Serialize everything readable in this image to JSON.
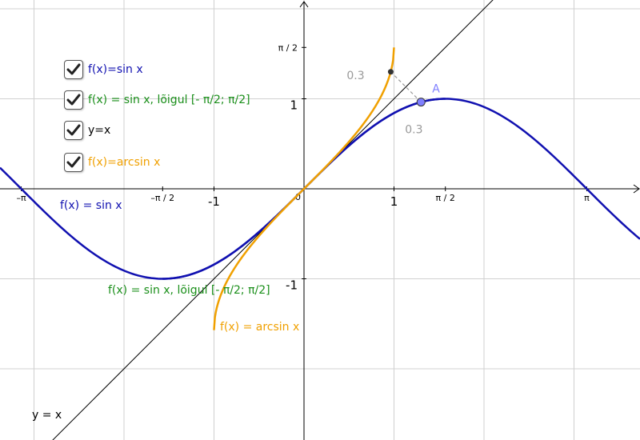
{
  "colors": {
    "sin": "#1010b0",
    "sin_restricted": "#1a8f1a",
    "identity": "#000000",
    "arcsin": "#f0a000",
    "point": "#8080ff",
    "gray_text": "#999999",
    "grid": "#d0d0d0"
  },
  "checkboxes": [
    {
      "label": "f(x)=sin x",
      "checked": true,
      "color": "#1010b0"
    },
    {
      "label": "f(x) = sin x, lõigul [- π/2; π/2]",
      "checked": true,
      "color": "#1a8f1a"
    },
    {
      "label": "y=x",
      "checked": true,
      "color": "#000000"
    },
    {
      "label": "f(x)=arcsin x",
      "checked": true,
      "color": "#f0a000"
    }
  ],
  "axis": {
    "x_ticks": [
      {
        "value": -3.14159,
        "label": "–π"
      },
      {
        "value": -1.5708,
        "label": "–π / 2"
      },
      {
        "value": -1,
        "label": "-1"
      },
      {
        "value": 1,
        "label": "1"
      },
      {
        "value": 1.5708,
        "label": "π / 2"
      },
      {
        "value": 3.14159,
        "label": "π"
      }
    ],
    "y_ticks": [
      {
        "value": 1.5708,
        "label": "π / 2"
      },
      {
        "value": 1,
        "label": "1"
      },
      {
        "value": -1,
        "label": "-1"
      }
    ],
    "origin_label": "0"
  },
  "curve_labels": {
    "sin": "f(x) = sin x",
    "sin_restricted": "f(x) = sin x, lõigul [- π/2; π/2]",
    "arcsin": "f(x) = arcsin x",
    "identity": "y = x"
  },
  "point": {
    "name": "A",
    "x": 1.3,
    "y": 0.9636
  },
  "reflection_point": {
    "x": 0.9636,
    "y": 1.3
  },
  "distance_labels": [
    "0.3",
    "0.3"
  ]
}
